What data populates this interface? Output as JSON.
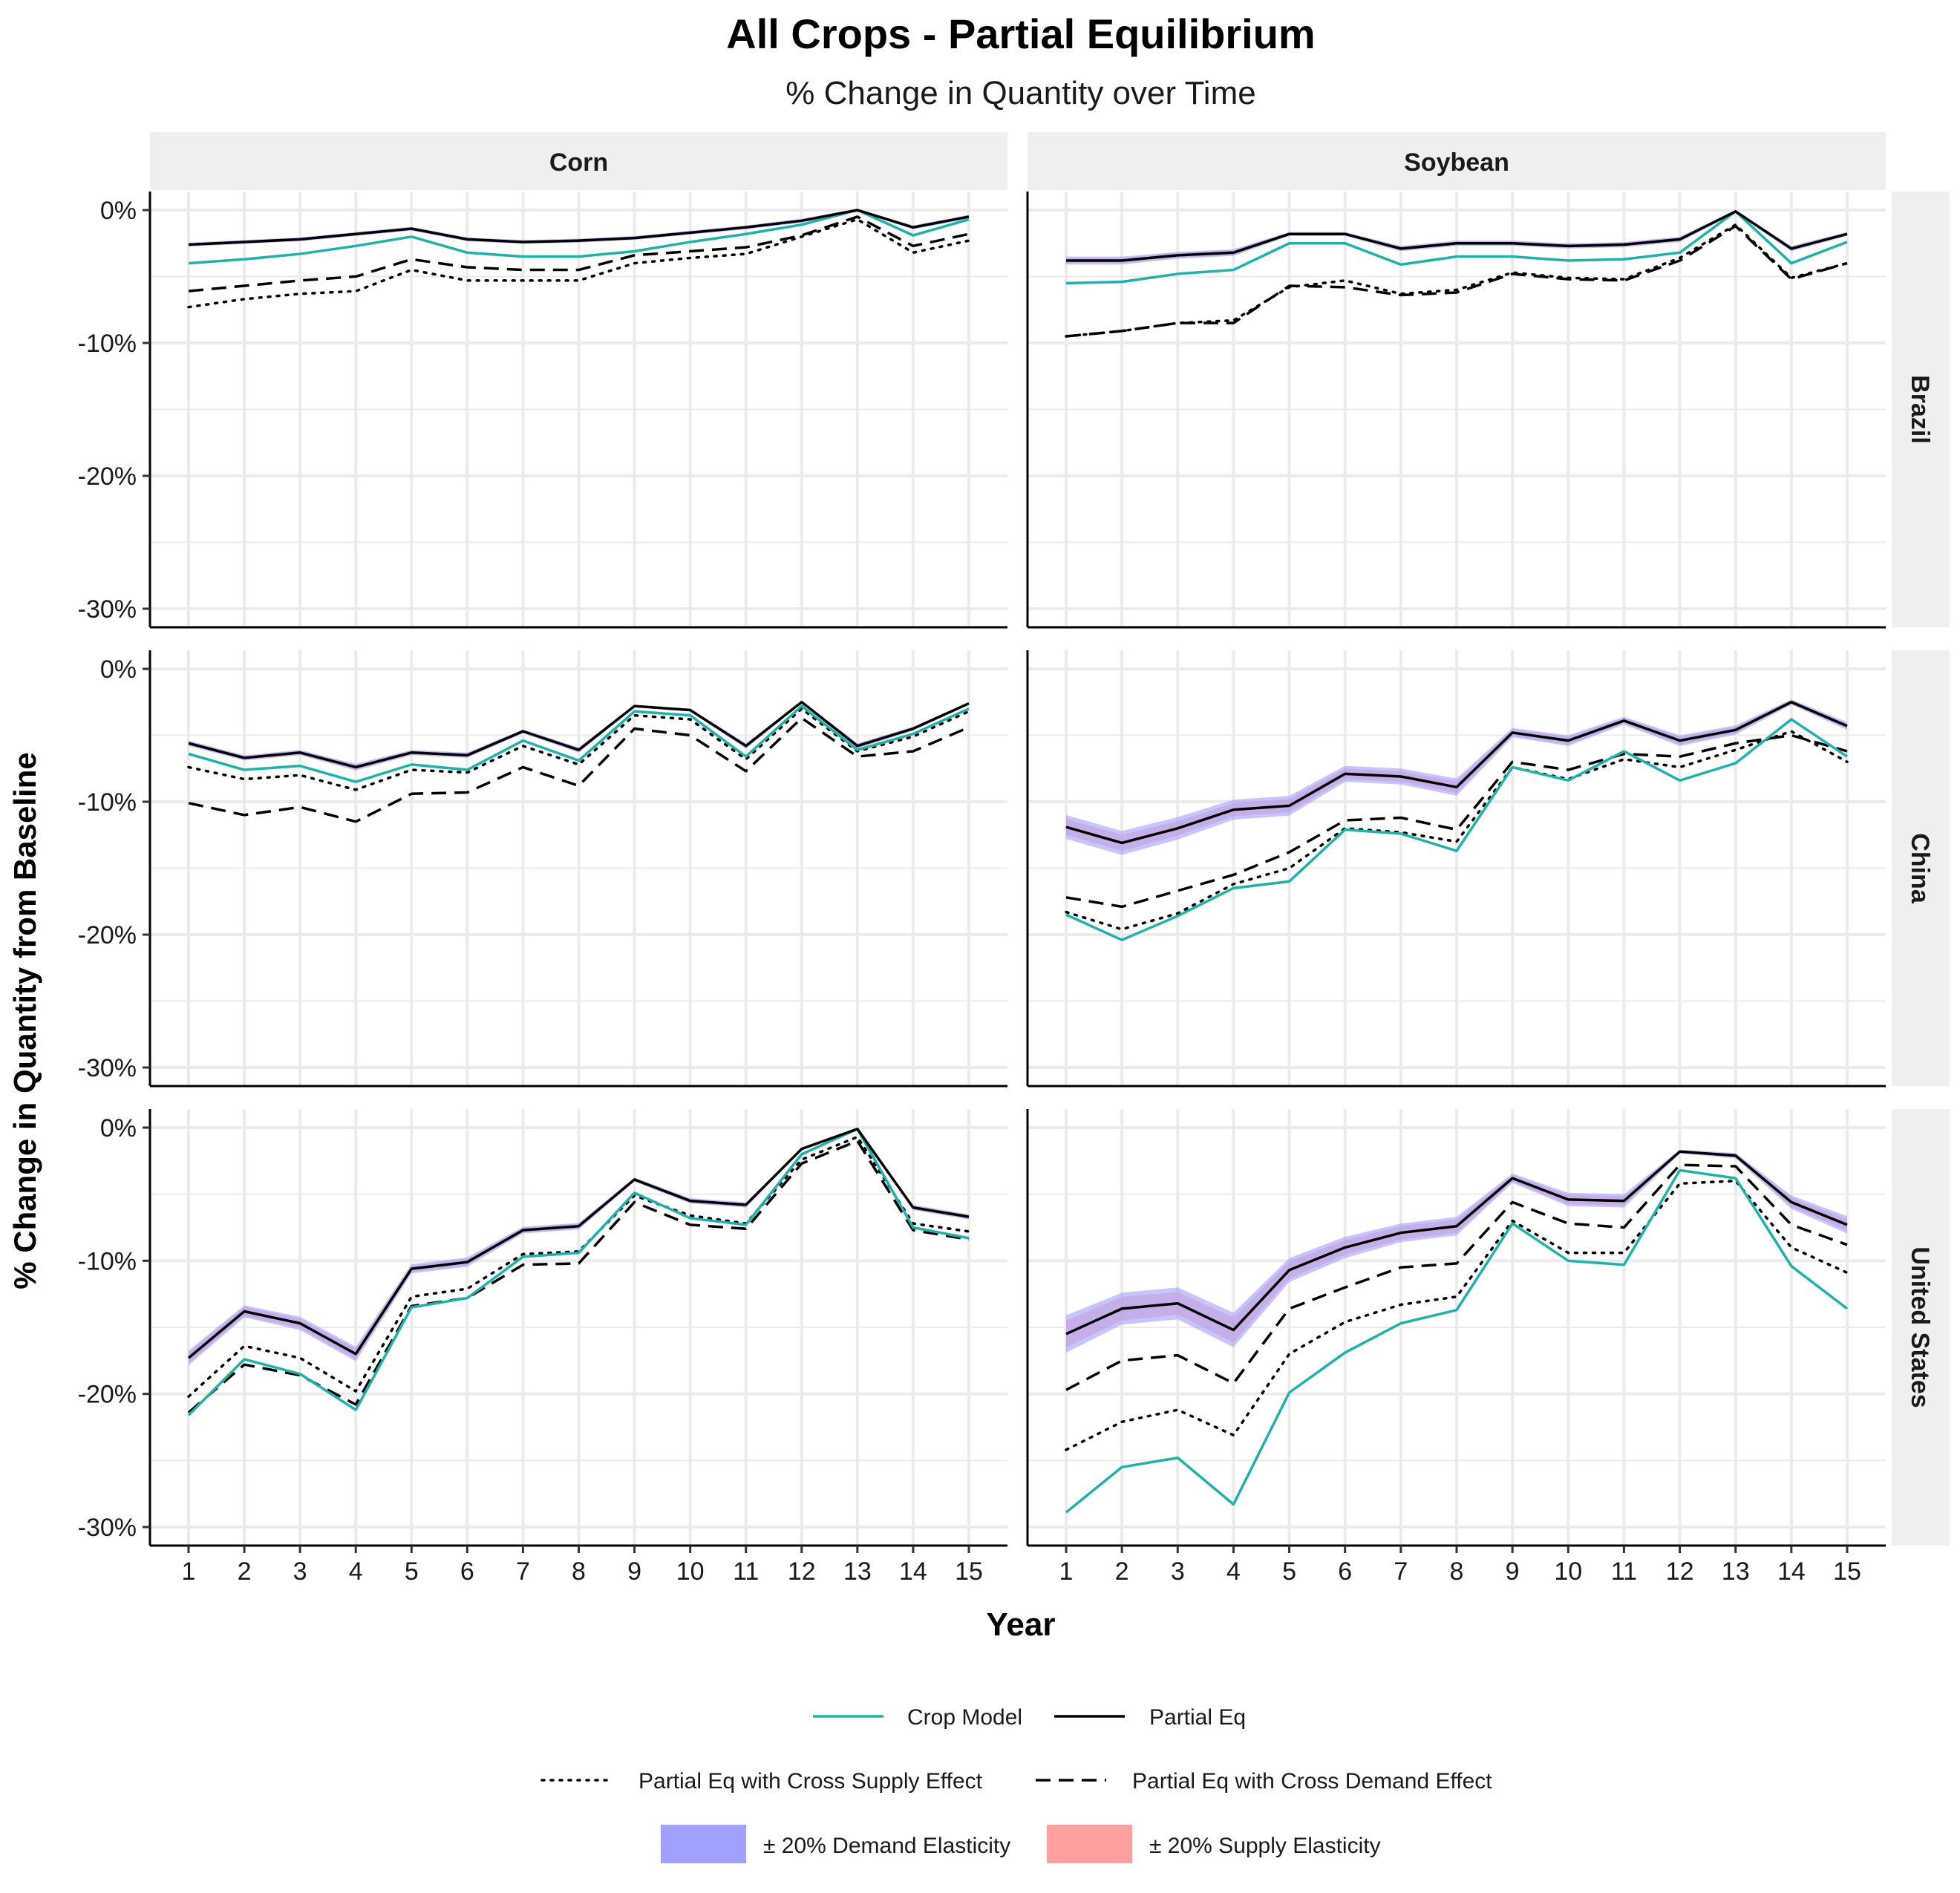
{
  "chart_data": {
    "type": "line",
    "title": "All Crops - Partial Equilibrium",
    "subtitle": "% Change in Quantity over Time",
    "xlabel": "Year",
    "ylabel": "% Change in Quantity from Baseline",
    "x": [
      1,
      2,
      3,
      4,
      5,
      6,
      7,
      8,
      9,
      10,
      11,
      12,
      13,
      14,
      15
    ],
    "ylim": [
      -30,
      0
    ],
    "y_ticks": [
      0,
      -10,
      -20,
      -30
    ],
    "y_tick_labels": [
      "0%",
      "-10%",
      "-20%",
      "-30%"
    ],
    "grid": true,
    "legend_position": "bottom",
    "colors": {
      "crop_model": "#20b2aa",
      "partial_eq": "#000000",
      "cross_supply": "#000000",
      "cross_demand": "#000000",
      "demand_elasticity_fill": "#a0a0ff",
      "supply_elasticity_fill": "#ffa0a0",
      "strip_fill": "#efefef",
      "grid": "#ebebeb"
    },
    "legend": {
      "crop_model": "Crop Model",
      "partial_eq": "Partial Eq",
      "cross_supply": "Partial Eq with Cross Supply Effect",
      "cross_demand": "Partial Eq with Cross Demand Effect",
      "demand_elasticity": "± 20% Demand Elasticity",
      "supply_elasticity": "± 20% Supply Elasticity"
    },
    "columns": [
      "Corn",
      "Soybean"
    ],
    "rows": [
      "Brazil",
      "China",
      "United States"
    ],
    "panels": {
      "Brazil": {
        "Corn": {
          "crop_model": [
            -4.0,
            -3.7,
            -3.3,
            -2.7,
            -2.0,
            -3.2,
            -3.5,
            -3.5,
            -3.1,
            -2.4,
            -1.8,
            -1.1,
            0.0,
            -1.9,
            -0.7
          ],
          "partial_eq": [
            -2.6,
            -2.4,
            -2.2,
            -1.8,
            -1.4,
            -2.2,
            -2.4,
            -2.3,
            -2.1,
            -1.7,
            -1.3,
            -0.8,
            0.0,
            -1.3,
            -0.5
          ],
          "cross_supply": [
            -7.3,
            -6.7,
            -6.3,
            -6.1,
            -4.5,
            -5.3,
            -5.3,
            -5.3,
            -4.0,
            -3.6,
            -3.3,
            -2.0,
            -0.7,
            -3.2,
            -2.3
          ],
          "cross_demand": [
            -6.1,
            -5.7,
            -5.3,
            -5.0,
            -3.7,
            -4.3,
            -4.5,
            -4.5,
            -3.4,
            -3.1,
            -2.8,
            -1.9,
            -0.5,
            -2.7,
            -1.8
          ],
          "demand_band": [
            0.15,
            0.15,
            0.15,
            0.15,
            0.15,
            0.15,
            0.15,
            0.15,
            0.15,
            0.15,
            0.15,
            0.15,
            0.1,
            0.15,
            0.15
          ],
          "supply_band": [
            0.1,
            0.1,
            0.1,
            0.1,
            0.1,
            0.1,
            0.1,
            0.1,
            0.1,
            0.1,
            0.1,
            0.1,
            0.1,
            0.1,
            0.1
          ]
        },
        "Soybean": {
          "crop_model": [
            -5.5,
            -5.4,
            -4.8,
            -4.5,
            -2.5,
            -2.5,
            -4.1,
            -3.5,
            -3.5,
            -3.8,
            -3.7,
            -3.2,
            -0.1,
            -4.0,
            -2.4
          ],
          "partial_eq": [
            -3.8,
            -3.8,
            -3.4,
            -3.2,
            -1.8,
            -1.8,
            -2.9,
            -2.5,
            -2.5,
            -2.7,
            -2.6,
            -2.2,
            -0.1,
            -2.9,
            -1.8
          ],
          "cross_supply": [
            -9.5,
            -9.1,
            -8.5,
            -8.3,
            -5.8,
            -5.3,
            -6.3,
            -6.0,
            -4.7,
            -5.1,
            -5.2,
            -3.6,
            -1.1,
            -5.1,
            -4.0
          ],
          "cross_demand": [
            -9.5,
            -9.1,
            -8.5,
            -8.5,
            -5.7,
            -5.8,
            -6.4,
            -6.2,
            -4.8,
            -5.2,
            -5.3,
            -3.8,
            -1.2,
            -5.2,
            -4.0
          ],
          "demand_band": [
            0.3,
            0.3,
            0.25,
            0.25,
            0.15,
            0.15,
            0.2,
            0.2,
            0.2,
            0.2,
            0.2,
            0.2,
            0.1,
            0.2,
            0.15
          ],
          "supply_band": [
            0.2,
            0.2,
            0.2,
            0.2,
            0.1,
            0.1,
            0.15,
            0.15,
            0.15,
            0.15,
            0.15,
            0.15,
            0.1,
            0.15,
            0.1
          ]
        }
      },
      "China": {
        "Corn": {
          "crop_model": [
            -6.4,
            -7.6,
            -7.3,
            -8.5,
            -7.2,
            -7.6,
            -5.4,
            -6.9,
            -3.2,
            -3.5,
            -6.6,
            -2.8,
            -6.1,
            -4.9,
            -3.0
          ],
          "partial_eq": [
            -5.6,
            -6.7,
            -6.3,
            -7.4,
            -6.3,
            -6.5,
            -4.7,
            -6.1,
            -2.8,
            -3.1,
            -5.8,
            -2.5,
            -5.8,
            -4.5,
            -2.6
          ],
          "cross_supply": [
            -7.4,
            -8.3,
            -8.0,
            -9.1,
            -7.6,
            -7.8,
            -5.8,
            -7.2,
            -3.5,
            -3.8,
            -6.8,
            -3.0,
            -6.2,
            -5.1,
            -3.2
          ],
          "cross_demand": [
            -10.1,
            -11.0,
            -10.4,
            -11.5,
            -9.4,
            -9.3,
            -7.4,
            -8.8,
            -4.5,
            -5.0,
            -7.7,
            -3.7,
            -6.6,
            -6.2,
            -4.4
          ],
          "demand_band": [
            0.2,
            0.2,
            0.2,
            0.25,
            0.2,
            0.2,
            0.15,
            0.2,
            0.1,
            0.1,
            0.2,
            0.1,
            0.2,
            0.15,
            0.1
          ],
          "supply_band": [
            0.15,
            0.15,
            0.15,
            0.2,
            0.15,
            0.15,
            0.1,
            0.15,
            0.1,
            0.1,
            0.15,
            0.1,
            0.15,
            0.1,
            0.1
          ]
        },
        "Soybean": {
          "crop_model": [
            -18.5,
            -20.4,
            -18.6,
            -16.5,
            -16.0,
            -12.1,
            -12.4,
            -13.7,
            -7.4,
            -8.4,
            -6.2,
            -8.4,
            -7.1,
            -3.8,
            -6.6
          ],
          "partial_eq": [
            -11.9,
            -13.1,
            -12.0,
            -10.6,
            -10.3,
            -7.9,
            -8.1,
            -8.9,
            -4.8,
            -5.4,
            -3.9,
            -5.4,
            -4.6,
            -2.5,
            -4.3
          ],
          "cross_supply": [
            -18.3,
            -19.6,
            -18.4,
            -16.2,
            -15.0,
            -12.0,
            -12.3,
            -13.0,
            -7.4,
            -8.3,
            -6.8,
            -7.4,
            -6.1,
            -4.7,
            -7.0
          ],
          "cross_demand": [
            -17.2,
            -17.9,
            -16.7,
            -15.5,
            -13.8,
            -11.4,
            -11.2,
            -12.1,
            -7.0,
            -7.6,
            -6.4,
            -6.6,
            -5.6,
            -5.0,
            -6.2
          ],
          "demand_band": [
            0.9,
            0.9,
            0.85,
            0.75,
            0.75,
            0.6,
            0.6,
            0.65,
            0.35,
            0.4,
            0.3,
            0.4,
            0.35,
            0.2,
            0.3
          ],
          "supply_band": [
            0.6,
            0.6,
            0.55,
            0.5,
            0.5,
            0.4,
            0.4,
            0.45,
            0.25,
            0.3,
            0.2,
            0.3,
            0.25,
            0.15,
            0.2
          ]
        }
      },
      "United States": {
        "Corn": {
          "crop_model": [
            -21.6,
            -17.4,
            -18.5,
            -21.2,
            -13.5,
            -12.8,
            -9.7,
            -9.4,
            -4.9,
            -6.8,
            -7.3,
            -2.0,
            -0.1,
            -7.5,
            -8.3
          ],
          "partial_eq": [
            -17.3,
            -13.8,
            -14.7,
            -17.0,
            -10.6,
            -10.1,
            -7.7,
            -7.4,
            -3.9,
            -5.5,
            -5.8,
            -1.6,
            -0.1,
            -6.0,
            -6.7
          ],
          "cross_supply": [
            -20.2,
            -16.4,
            -17.3,
            -19.8,
            -12.7,
            -12.1,
            -9.5,
            -9.3,
            -5.1,
            -6.6,
            -7.2,
            -2.4,
            -0.7,
            -7.2,
            -7.8
          ],
          "cross_demand": [
            -21.4,
            -17.8,
            -18.6,
            -20.8,
            -13.4,
            -12.8,
            -10.3,
            -10.2,
            -5.6,
            -7.3,
            -7.6,
            -2.7,
            -1.0,
            -7.7,
            -8.4
          ],
          "demand_band": [
            0.55,
            0.45,
            0.5,
            0.55,
            0.35,
            0.35,
            0.25,
            0.25,
            0.15,
            0.2,
            0.2,
            0.1,
            0.05,
            0.2,
            0.2
          ],
          "supply_band": [
            0.4,
            0.35,
            0.35,
            0.4,
            0.25,
            0.25,
            0.2,
            0.2,
            0.1,
            0.15,
            0.15,
            0.05,
            0.05,
            0.15,
            0.15
          ]
        },
        "Soybean": {
          "crop_model": [
            -28.9,
            -25.5,
            -24.8,
            -28.3,
            -19.9,
            -16.9,
            -14.7,
            -13.7,
            -7.2,
            -10.0,
            -10.3,
            -3.2,
            -3.8,
            -10.4,
            -13.6
          ],
          "partial_eq": [
            -15.5,
            -13.6,
            -13.2,
            -15.2,
            -10.7,
            -9.0,
            -7.9,
            -7.4,
            -3.8,
            -5.4,
            -5.5,
            -1.8,
            -2.1,
            -5.6,
            -7.3
          ],
          "cross_supply": [
            -24.2,
            -22.1,
            -21.2,
            -23.1,
            -17.0,
            -14.6,
            -13.3,
            -12.7,
            -7.0,
            -9.4,
            -9.4,
            -4.2,
            -4.0,
            -9.0,
            -10.9
          ],
          "cross_demand": [
            -19.7,
            -17.5,
            -17.1,
            -19.2,
            -13.6,
            -12.0,
            -10.5,
            -10.2,
            -5.6,
            -7.2,
            -7.5,
            -2.8,
            -2.9,
            -7.3,
            -8.8
          ],
          "demand_band": [
            1.4,
            1.2,
            1.2,
            1.3,
            0.9,
            0.8,
            0.7,
            0.7,
            0.35,
            0.5,
            0.5,
            0.15,
            0.2,
            0.5,
            0.65
          ],
          "supply_band": [
            1.0,
            0.9,
            0.85,
            0.95,
            0.65,
            0.55,
            0.5,
            0.5,
            0.25,
            0.35,
            0.35,
            0.1,
            0.15,
            0.35,
            0.45
          ]
        }
      }
    }
  }
}
